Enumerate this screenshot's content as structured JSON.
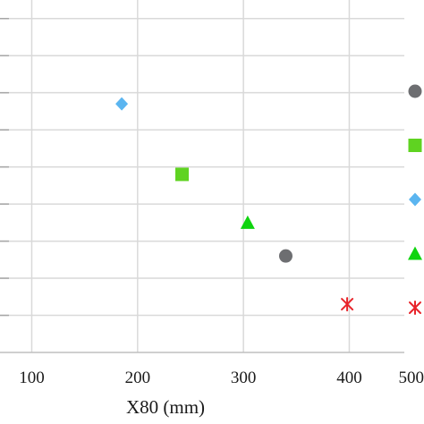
{
  "chart_data": {
    "type": "scatter",
    "title": "",
    "xlabel": "X80 (mm)",
    "ylabel": "",
    "xlim": [
      70,
      452
    ],
    "ylim": [
      0,
      9.5
    ],
    "x_ticks": [
      100,
      200,
      300,
      400,
      500
    ],
    "x_tick_labels": [
      "100",
      "200",
      "300",
      "400",
      "500"
    ],
    "grid": true,
    "legend": "right",
    "series": [
      {
        "marker": "circle",
        "color": "#6d6e71",
        "points": [
          {
            "x": 340,
            "y": 2.6
          }
        ]
      },
      {
        "marker": "square",
        "color": "#5fd321",
        "points": [
          {
            "x": 242,
            "y": 4.8
          }
        ]
      },
      {
        "marker": "diamond",
        "color": "#5bb5f0",
        "points": [
          {
            "x": 185,
            "y": 6.7
          }
        ]
      },
      {
        "marker": "triangle",
        "color": "#0fd40f",
        "points": [
          {
            "x": 304,
            "y": 3.5
          }
        ]
      },
      {
        "marker": "asterisk",
        "color": "#e8242a",
        "points": [
          {
            "x": 398,
            "y": 1.3
          }
        ]
      }
    ]
  }
}
